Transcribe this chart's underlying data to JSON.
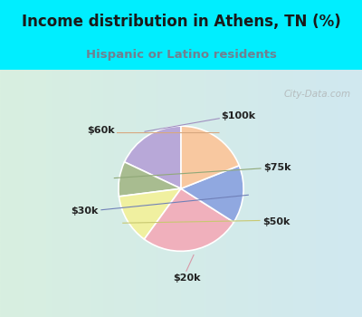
{
  "title": "Income distribution in Athens, TN (%)",
  "subtitle": "Hispanic or Latino residents",
  "title_color": "#1a1a1a",
  "subtitle_color": "#708090",
  "bg_color": "#00eeff",
  "panel_gradient_left": "#d8efe0",
  "panel_gradient_right": "#d0e8f0",
  "labels": [
    "$100k",
    "$75k",
    "$50k",
    "$20k",
    "$30k",
    "$60k"
  ],
  "values": [
    18,
    9,
    13,
    26,
    15,
    19
  ],
  "colors": [
    "#b8a8d8",
    "#a8bc90",
    "#f0f0a0",
    "#f0b0bc",
    "#90a8e0",
    "#f8c8a0"
  ],
  "line_colors": [
    "#a090c0",
    "#90a878",
    "#c8c870",
    "#d898a8",
    "#7080b8",
    "#d8a880"
  ],
  "watermark": "City-Data.com"
}
